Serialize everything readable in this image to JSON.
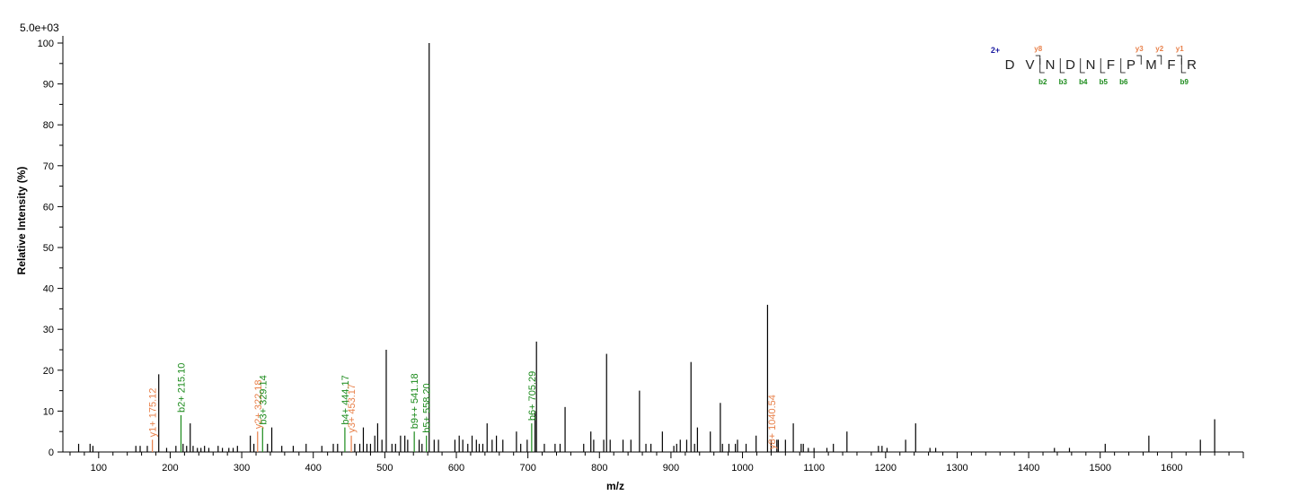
{
  "chart_data": {
    "type": "bar",
    "subtype": "mass-spectrum",
    "scale_label": "5.0e+03",
    "xlabel": "m/z",
    "ylabel": "Relative   Intensity (%)",
    "xlim": [
      50,
      1700
    ],
    "ylim": [
      0,
      100
    ],
    "x_ticks": [
      100,
      200,
      300,
      400,
      500,
      600,
      700,
      800,
      900,
      1000,
      1100,
      1200,
      1300,
      1400,
      1500,
      1600
    ],
    "y_ticks": [
      0,
      10,
      20,
      30,
      40,
      50,
      60,
      70,
      80,
      90,
      100
    ],
    "colors": {
      "axis": "#000000",
      "peak": "#000000",
      "b_ion": "#1a8a1a",
      "y_ion": "#e8804a",
      "charge": "#1a1aa0"
    },
    "peaks": [
      [
        72,
        2
      ],
      [
        88,
        2
      ],
      [
        92,
        1.5
      ],
      [
        152,
        1.5
      ],
      [
        158,
        1.5
      ],
      [
        168,
        1.5
      ],
      [
        175.12,
        3
      ],
      [
        184,
        19
      ],
      [
        195,
        1
      ],
      [
        208,
        1.5
      ],
      [
        215.1,
        9
      ],
      [
        218,
        2
      ],
      [
        223,
        1.5
      ],
      [
        228,
        7
      ],
      [
        232,
        1.5
      ],
      [
        238,
        1
      ],
      [
        243,
        1
      ],
      [
        248,
        1.5
      ],
      [
        254,
        1
      ],
      [
        267,
        1.5
      ],
      [
        273,
        1
      ],
      [
        282,
        1
      ],
      [
        288,
        1
      ],
      [
        294,
        1.5
      ],
      [
        312,
        4
      ],
      [
        317,
        2
      ],
      [
        322.18,
        5
      ],
      [
        329.14,
        6
      ],
      [
        336,
        2
      ],
      [
        342,
        6
      ],
      [
        356,
        1.5
      ],
      [
        372,
        1.5
      ],
      [
        390,
        2
      ],
      [
        412,
        1.5
      ],
      [
        428,
        2
      ],
      [
        434,
        2
      ],
      [
        444.17,
        6
      ],
      [
        453.17,
        4
      ],
      [
        458,
        2
      ],
      [
        465,
        2
      ],
      [
        470,
        6
      ],
      [
        475,
        2
      ],
      [
        480,
        2
      ],
      [
        486,
        4
      ],
      [
        490,
        7
      ],
      [
        496,
        3
      ],
      [
        502,
        25
      ],
      [
        510,
        2
      ],
      [
        515,
        2
      ],
      [
        522,
        4
      ],
      [
        528,
        4
      ],
      [
        532,
        3
      ],
      [
        541.18,
        5
      ],
      [
        548,
        3
      ],
      [
        552,
        2
      ],
      [
        558.2,
        4
      ],
      [
        562,
        100
      ],
      [
        569,
        3
      ],
      [
        575,
        3
      ],
      [
        598,
        3
      ],
      [
        604,
        4
      ],
      [
        609,
        3
      ],
      [
        616,
        2
      ],
      [
        622,
        4
      ],
      [
        628,
        3
      ],
      [
        632,
        2
      ],
      [
        637,
        2
      ],
      [
        643,
        7
      ],
      [
        650,
        3
      ],
      [
        656,
        4
      ],
      [
        665,
        3
      ],
      [
        684,
        5
      ],
      [
        690,
        2
      ],
      [
        699,
        3
      ],
      [
        705.29,
        7
      ],
      [
        710,
        10
      ],
      [
        712,
        27
      ],
      [
        723,
        2
      ],
      [
        738,
        2
      ],
      [
        745,
        2
      ],
      [
        752,
        11
      ],
      [
        778,
        2
      ],
      [
        788,
        5
      ],
      [
        792,
        3
      ],
      [
        806,
        3
      ],
      [
        810,
        24
      ],
      [
        815,
        3
      ],
      [
        833,
        3
      ],
      [
        844,
        3
      ],
      [
        856,
        15
      ],
      [
        865,
        2
      ],
      [
        872,
        2
      ],
      [
        888,
        5
      ],
      [
        904,
        1.5
      ],
      [
        908,
        2
      ],
      [
        913,
        3
      ],
      [
        922,
        3
      ],
      [
        928,
        22
      ],
      [
        933,
        2
      ],
      [
        937,
        6
      ],
      [
        955,
        5
      ],
      [
        969,
        12
      ],
      [
        972,
        2
      ],
      [
        981,
        2
      ],
      [
        990,
        2
      ],
      [
        993,
        3
      ],
      [
        1005,
        2
      ],
      [
        1019,
        4
      ],
      [
        1035,
        36
      ],
      [
        1040,
        3
      ],
      [
        1048,
        3
      ],
      [
        1050,
        3
      ],
      [
        1060,
        3
      ],
      [
        1071,
        7
      ],
      [
        1082,
        2
      ],
      [
        1085,
        2
      ],
      [
        1092,
        1
      ],
      [
        1100,
        1
      ],
      [
        1118,
        1
      ],
      [
        1127,
        2
      ],
      [
        1146,
        5
      ],
      [
        1190,
        1.5
      ],
      [
        1195,
        1.5
      ],
      [
        1202,
        1
      ],
      [
        1228,
        3
      ],
      [
        1242,
        7
      ],
      [
        1262,
        1
      ],
      [
        1270,
        1
      ],
      [
        1436,
        1
      ],
      [
        1457,
        1
      ],
      [
        1507,
        2
      ],
      [
        1568,
        4
      ],
      [
        1640,
        3
      ],
      [
        1660,
        8
      ]
    ],
    "annotations": [
      {
        "label": "y1+ 175.12",
        "mz": 175.12,
        "type": "y"
      },
      {
        "label": "b2+ 215.10",
        "mz": 215.1,
        "type": "b"
      },
      {
        "label": "y2+ 322.18",
        "mz": 322.18,
        "type": "y"
      },
      {
        "label": "b3+ 329.14",
        "mz": 329.14,
        "type": "b"
      },
      {
        "label": "b4+ 444.17",
        "mz": 444.17,
        "type": "b"
      },
      {
        "label": "y3+ 453.17",
        "mz": 453.17,
        "type": "y"
      },
      {
        "label": "b9++ 541.18",
        "mz": 541.18,
        "type": "b"
      },
      {
        "label": "b5+ 558.20",
        "mz": 558.2,
        "type": "b"
      },
      {
        "label": "b6+ 705.29",
        "mz": 705.29,
        "type": "b"
      },
      {
        "label": "y8+ 1040.54",
        "mz": 1040.54,
        "type": "y"
      }
    ],
    "sequence": {
      "charge": "2+",
      "residues": [
        "D",
        "V",
        "N",
        "D",
        "N",
        "F",
        "P",
        "M",
        "F",
        "R"
      ],
      "y_ions": [
        {
          "after": 2,
          "label": "y8"
        },
        {
          "after": 7,
          "label": "y3"
        },
        {
          "after": 8,
          "label": "y2"
        },
        {
          "after": 9,
          "label": "y1"
        }
      ],
      "b_ions": [
        {
          "after": 2,
          "label": "b2"
        },
        {
          "after": 3,
          "label": "b3"
        },
        {
          "after": 4,
          "label": "b4"
        },
        {
          "after": 5,
          "label": "b5"
        },
        {
          "after": 6,
          "label": "b6"
        },
        {
          "after": 9,
          "label": "b9"
        }
      ]
    }
  }
}
